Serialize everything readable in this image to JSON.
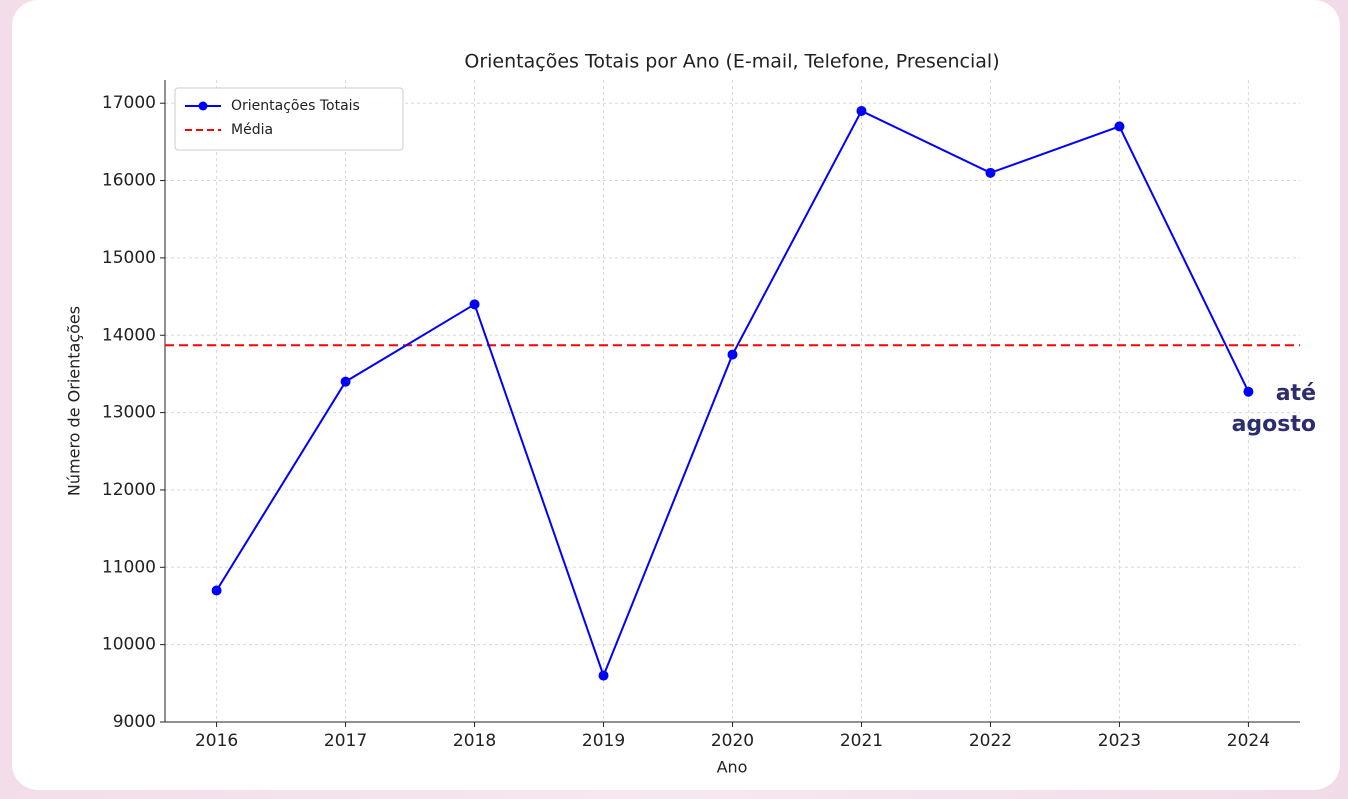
{
  "chart_data": {
    "type": "line",
    "title": "Orientações Totais por Ano (E-mail, Telefone, Presencial)",
    "x_label": "Ano",
    "y_label": "Número de Orientações",
    "x": [
      2016,
      2017,
      2018,
      2019,
      2020,
      2021,
      2022,
      2023,
      2024
    ],
    "series": [
      {
        "name": "Orientações Totais",
        "color": "#0000ff",
        "values": [
          10700,
          13400,
          14400,
          9600,
          13750,
          16900,
          16100,
          16700,
          13270
        ]
      }
    ],
    "mean": {
      "name": "Média",
      "value": 13870,
      "color": "#ff0000",
      "style": "dashed"
    },
    "annotation": "até agosto",
    "xlim": [
      2015.6,
      2024.4
    ],
    "ylim": [
      9000,
      17300
    ],
    "xticks": [
      2016,
      2017,
      2018,
      2019,
      2020,
      2021,
      2022,
      2023,
      2024
    ],
    "yticks": [
      9000,
      10000,
      11000,
      12000,
      13000,
      14000,
      15000,
      16000,
      17000
    ],
    "grid": true,
    "legend": "upper left"
  }
}
